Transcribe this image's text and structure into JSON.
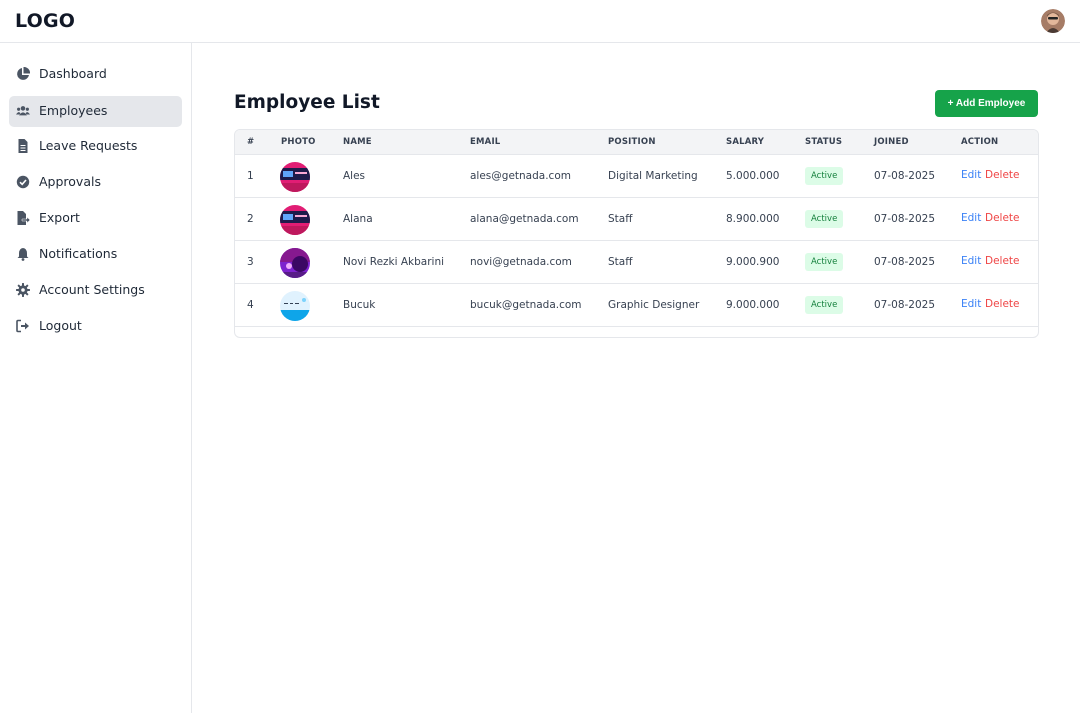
{
  "header": {
    "logo": "LOGO"
  },
  "sidebar": {
    "items": [
      {
        "label": "Dashboard",
        "icon": "chart-pie-icon"
      },
      {
        "label": "Employees",
        "icon": "users-icon",
        "active": true
      },
      {
        "label": "Leave Requests",
        "icon": "file-icon"
      },
      {
        "label": "Approvals",
        "icon": "check-circle-icon"
      },
      {
        "label": "Export",
        "icon": "file-export-icon"
      },
      {
        "label": "Notifications",
        "icon": "bell-icon"
      },
      {
        "label": "Account Settings",
        "icon": "gear-icon"
      },
      {
        "label": "Logout",
        "icon": "sign-out-icon"
      }
    ]
  },
  "main": {
    "title": "Employee List",
    "add_button": "+ Add Employee",
    "table": {
      "headers": [
        "#",
        "PHOTO",
        "NAME",
        "EMAIL",
        "POSITION",
        "SALARY",
        "STATUS",
        "JOINED",
        "ACTION"
      ],
      "rows": [
        {
          "num": "1",
          "name": "Ales",
          "email": "ales@getnada.com",
          "position": "Digital Marketing",
          "salary": "5.000.000",
          "status": "Active",
          "joined": "07-08-2025",
          "edit": "Edit",
          "delete": "Delete"
        },
        {
          "num": "2",
          "name": "Alana",
          "email": "alana@getnada.com",
          "position": "Staff",
          "salary": "8.900.000",
          "status": "Active",
          "joined": "07-08-2025",
          "edit": "Edit",
          "delete": "Delete"
        },
        {
          "num": "3",
          "name": "Novi Rezki Akbarini",
          "email": "novi@getnada.com",
          "position": "Staff",
          "salary": "9.000.900",
          "status": "Active",
          "joined": "07-08-2025",
          "edit": "Edit",
          "delete": "Delete"
        },
        {
          "num": "4",
          "name": "Bucuk",
          "email": "bucuk@getnada.com",
          "position": "Graphic Designer",
          "salary": "9.000.000",
          "status": "Active",
          "joined": "07-08-2025",
          "edit": "Edit",
          "delete": "Delete"
        }
      ]
    }
  },
  "colors": {
    "accent": "#16a34a",
    "edit": "#3b82f6",
    "delete": "#ef4444",
    "badge_bg": "#dcfce7"
  }
}
